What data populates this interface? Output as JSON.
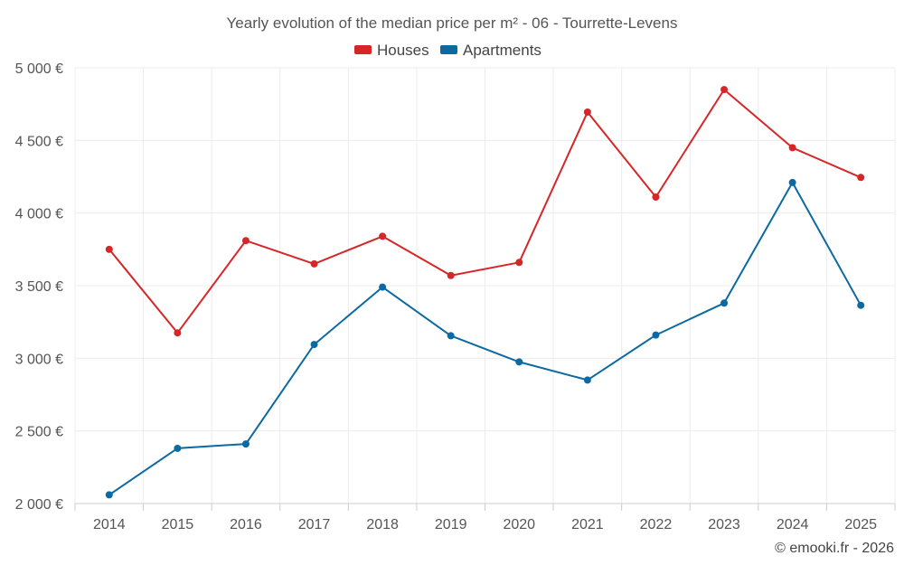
{
  "chart_data": {
    "type": "line",
    "title": "Yearly evolution of the median price per m² - 06 - Tourrette-Levens",
    "categories": [
      "2014",
      "2015",
      "2016",
      "2017",
      "2018",
      "2019",
      "2020",
      "2021",
      "2022",
      "2023",
      "2024",
      "2025"
    ],
    "series": [
      {
        "name": "Houses",
        "color": "#d62728",
        "values": [
          3750,
          3175,
          3810,
          3650,
          3840,
          3570,
          3660,
          4695,
          4110,
          4850,
          4450,
          4245
        ]
      },
      {
        "name": "Apartments",
        "color": "#0b6aa2",
        "values": [
          2060,
          2380,
          2410,
          3095,
          3490,
          3155,
          2975,
          2850,
          3160,
          3380,
          4210,
          3365
        ]
      }
    ],
    "ylim": [
      2000,
      5000
    ],
    "yticks": [
      2000,
      2500,
      3000,
      3500,
      4000,
      4500,
      5000
    ],
    "ytick_labels": [
      "2 000 €",
      "2 500 €",
      "3 000 €",
      "3 500 €",
      "4 000 €",
      "4 500 €",
      "5 000 €"
    ],
    "xlabel": "",
    "ylabel": "",
    "grid": true,
    "legend_position": "top-center",
    "credit": "© emooki.fr - 2026"
  }
}
